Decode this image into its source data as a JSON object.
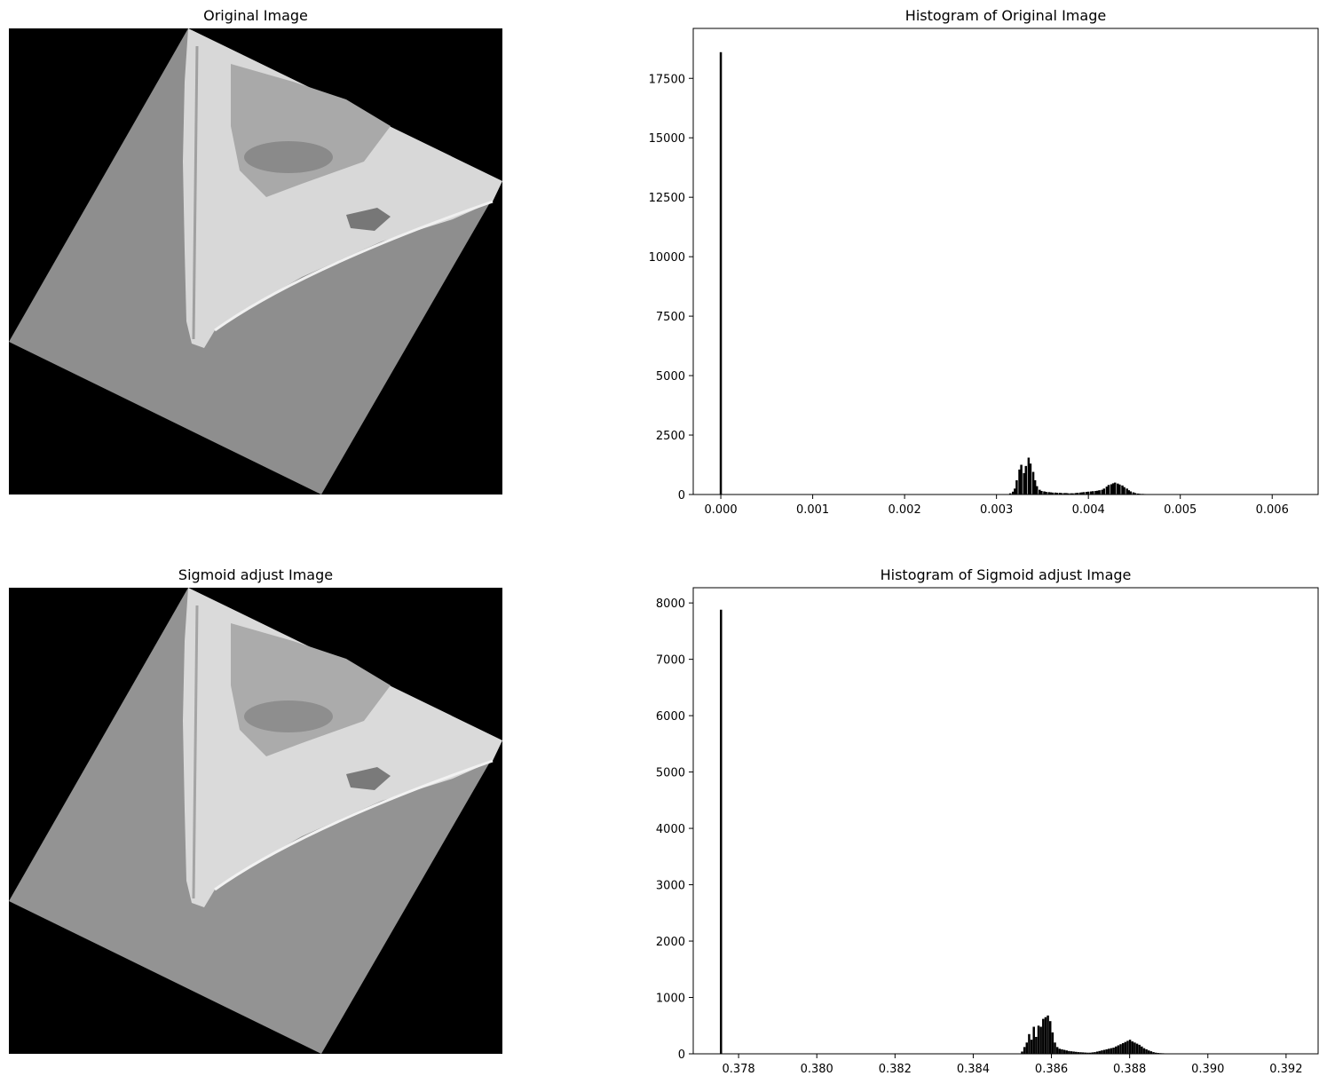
{
  "panels": {
    "original_title": "Original Image",
    "sigmoid_title": "Sigmoid adjust Image"
  },
  "chart_data": [
    {
      "type": "bar",
      "title": "Histogram of Original Image",
      "xlabel": "",
      "ylabel": "",
      "xlim": [
        -0.0003,
        0.0065
      ],
      "ylim": [
        0,
        19600
      ],
      "xticks": [
        0.0,
        0.001,
        0.002,
        0.003,
        0.004,
        0.005,
        0.006
      ],
      "xtick_labels": [
        "0.000",
        "0.001",
        "0.002",
        "0.003",
        "0.004",
        "0.005",
        "0.006"
      ],
      "yticks": [
        0,
        2500,
        5000,
        7500,
        10000,
        12500,
        15000,
        17500
      ],
      "yticks_labels": [
        "0",
        "2500",
        "5000",
        "7500",
        "10000",
        "12500",
        "15000",
        "17500"
      ],
      "bar_width": 2.41e-05,
      "grid": false,
      "color": "#000000",
      "bins_x": [
        0.0,
        0.00315,
        0.00318,
        0.0032,
        0.00322,
        0.00325,
        0.00327,
        0.0033,
        0.00332,
        0.00335,
        0.00337,
        0.0034,
        0.00342,
        0.00344,
        0.00347,
        0.00349,
        0.00352,
        0.00354,
        0.00357,
        0.00359,
        0.00361,
        0.00364,
        0.00366,
        0.00369,
        0.00371,
        0.00374,
        0.00376,
        0.00378,
        0.00381,
        0.00383,
        0.00386,
        0.00388,
        0.00391,
        0.00393,
        0.00395,
        0.00398,
        0.004,
        0.00403,
        0.00405,
        0.00408,
        0.0041,
        0.00412,
        0.00415,
        0.00417,
        0.0042,
        0.00422,
        0.00425,
        0.00427,
        0.00429,
        0.00432,
        0.00434,
        0.00437,
        0.00439,
        0.00442,
        0.00444,
        0.00446,
        0.00449,
        0.00451,
        0.00454,
        0.00456,
        0.00459,
        0.00461,
        0.00463,
        0.00466,
        0.00468,
        0.00471,
        0.00473,
        0.00476,
        0.00478,
        0.0048,
        0.00483,
        0.00485,
        0.00488,
        0.0049,
        0.00493,
        0.00495,
        0.00497,
        0.005,
        0.00502,
        0.00505,
        0.00507,
        0.0051,
        0.00512,
        0.00514,
        0.00517,
        0.00519,
        0.00522,
        0.00524,
        0.00527,
        0.00529,
        0.00532
      ],
      "values": [
        18600,
        50,
        120,
        250,
        600,
        1050,
        1250,
        900,
        1200,
        1550,
        1300,
        950,
        600,
        350,
        200,
        150,
        130,
        110,
        100,
        90,
        80,
        80,
        70,
        70,
        60,
        60,
        60,
        50,
        50,
        50,
        60,
        70,
        80,
        90,
        100,
        110,
        120,
        130,
        140,
        150,
        160,
        180,
        200,
        250,
        330,
        400,
        430,
        470,
        500,
        460,
        420,
        380,
        310,
        250,
        180,
        130,
        90,
        60,
        40,
        30,
        25,
        20,
        15,
        12,
        10,
        8,
        6,
        5,
        4,
        3,
        2,
        1,
        1,
        1,
        1,
        1,
        1,
        1,
        1,
        1,
        1,
        1,
        1,
        1,
        1,
        1,
        1,
        1,
        1,
        1,
        1
      ]
    },
    {
      "type": "bar",
      "title": "Histogram of Sigmoid adjust Image",
      "xlabel": "",
      "ylabel": "",
      "xlim": [
        0.37684,
        0.39282
      ],
      "ylim": [
        0,
        8270
      ],
      "xticks": [
        0.378,
        0.38,
        0.382,
        0.384,
        0.386,
        0.388,
        0.39,
        0.392
      ],
      "xtick_labels": [
        "0.378",
        "0.380",
        "0.382",
        "0.384",
        "0.386",
        "0.388",
        "0.390",
        "0.392"
      ],
      "yticks": [
        0,
        1000,
        2000,
        3000,
        4000,
        5000,
        6000,
        7000,
        8000
      ],
      "yticks_labels": [
        "0",
        "1000",
        "2000",
        "3000",
        "4000",
        "5000",
        "6000",
        "7000",
        "8000"
      ],
      "bar_width": 5.67e-05,
      "grid": false,
      "color": "#000000",
      "bins_x": [
        0.37755,
        0.38525,
        0.38531,
        0.38537,
        0.38543,
        0.38549,
        0.38555,
        0.38561,
        0.38567,
        0.38573,
        0.38579,
        0.38585,
        0.38591,
        0.38597,
        0.38603,
        0.38609,
        0.38615,
        0.38621,
        0.38627,
        0.38633,
        0.38639,
        0.38645,
        0.38651,
        0.38657,
        0.38663,
        0.38669,
        0.38675,
        0.38681,
        0.38687,
        0.38693,
        0.38699,
        0.38705,
        0.38711,
        0.38717,
        0.38723,
        0.38729,
        0.38735,
        0.38741,
        0.38747,
        0.38753,
        0.38759,
        0.38765,
        0.38771,
        0.38777,
        0.38783,
        0.38789,
        0.38795,
        0.38801,
        0.38807,
        0.38813,
        0.38819,
        0.38825,
        0.38831,
        0.38837,
        0.38843,
        0.38849,
        0.38855,
        0.38861,
        0.38867,
        0.38873,
        0.38879,
        0.38885,
        0.38891,
        0.38897,
        0.38903,
        0.38909,
        0.38915,
        0.38921,
        0.38927,
        0.38933,
        0.38939,
        0.38945,
        0.38951,
        0.38957,
        0.38963,
        0.38969,
        0.38975,
        0.38981,
        0.38987,
        0.38993,
        0.38999,
        0.39005
      ],
      "values": [
        7880,
        40,
        120,
        200,
        350,
        250,
        480,
        300,
        500,
        480,
        620,
        650,
        680,
        580,
        380,
        200,
        120,
        90,
        80,
        70,
        60,
        50,
        45,
        40,
        35,
        30,
        28,
        25,
        22,
        20,
        20,
        25,
        30,
        40,
        50,
        60,
        70,
        80,
        90,
        100,
        110,
        130,
        150,
        170,
        190,
        210,
        230,
        250,
        220,
        200,
        180,
        160,
        130,
        100,
        80,
        60,
        45,
        30,
        20,
        15,
        12,
        10,
        8,
        6,
        5,
        4,
        3,
        2,
        2,
        1,
        1,
        1,
        1,
        1,
        1,
        1,
        1,
        1,
        1,
        1,
        1,
        1
      ]
    }
  ]
}
